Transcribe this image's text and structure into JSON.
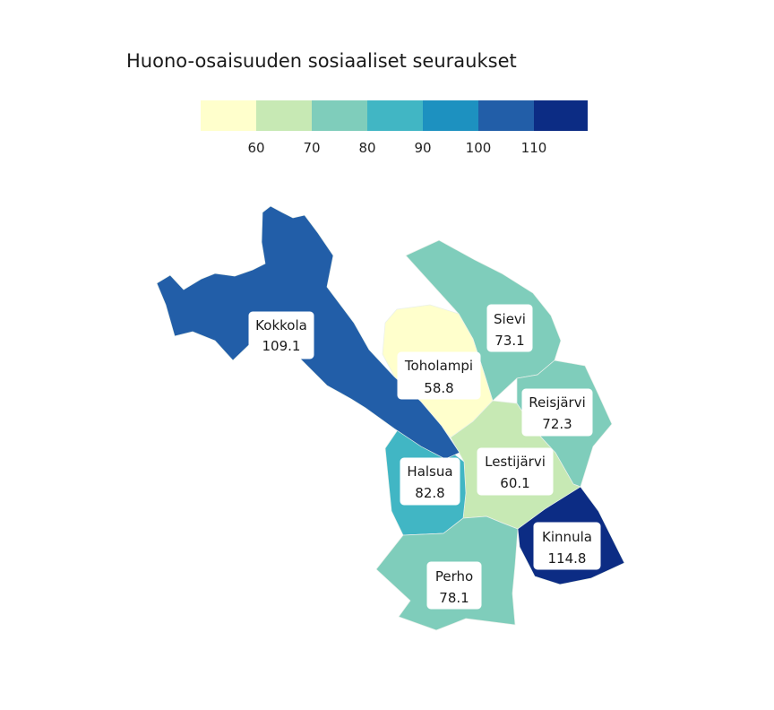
{
  "title": "Huono-osaisuuden sosiaaliset seuraukset",
  "legend": {
    "colors": [
      "#ffffcc",
      "#c7e9b4",
      "#7fcdbb",
      "#41b6c4",
      "#1d91c0",
      "#225ea8",
      "#0c2c84"
    ],
    "ticks": [
      "60",
      "70",
      "80",
      "90",
      "100",
      "110"
    ]
  },
  "regions": [
    {
      "id": "kokkola",
      "name": "Kokkola",
      "value": "109.1",
      "color": "#225ea8"
    },
    {
      "id": "toholampi",
      "name": "Toholampi",
      "value": "58.8",
      "color": "#ffffcc"
    },
    {
      "id": "sievi",
      "name": "Sievi",
      "value": "73.1",
      "color": "#7fcdbb"
    },
    {
      "id": "reisjarvi",
      "name": "Reisjärvi",
      "value": "72.3",
      "color": "#7fcdbb"
    },
    {
      "id": "lestijarvi",
      "name": "Lestijärvi",
      "value": "60.1",
      "color": "#c7e9b4"
    },
    {
      "id": "halsua",
      "name": "Halsua",
      "value": "82.8",
      "color": "#41b6c4"
    },
    {
      "id": "kinnula",
      "name": "Kinnula",
      "value": "114.8",
      "color": "#0c2c84"
    },
    {
      "id": "perho",
      "name": "Perho",
      "value": "78.1",
      "color": "#7fcdbb"
    }
  ]
}
